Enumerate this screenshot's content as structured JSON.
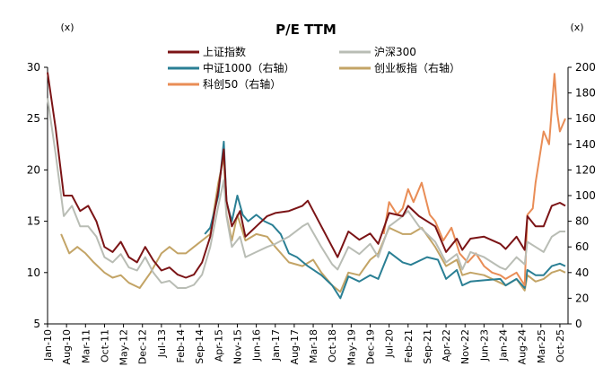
{
  "chart_data": {
    "type": "line",
    "title": "P/E TTM",
    "left_unit": "(x)",
    "right_unit": "(x)",
    "ylim_left": [
      5,
      30
    ],
    "yticks_left": [
      5,
      10,
      15,
      20,
      25,
      30
    ],
    "ylim_right": [
      0,
      200
    ],
    "yticks_right": [
      0,
      20,
      40,
      60,
      80,
      100,
      120,
      140,
      160,
      180,
      200
    ],
    "x_range": [
      "2010-01",
      "2025-12"
    ],
    "x_ticks": [
      "Jan-10",
      "Aug-10",
      "Mar-11",
      "Oct-11",
      "May-12",
      "Dec-12",
      "Jul-13",
      "Feb-14",
      "Sep-14",
      "Apr-15",
      "Nov-15",
      "Jun-16",
      "Jan-17",
      "Aug-17",
      "Mar-18",
      "Oct-18",
      "May-19",
      "Dec-19",
      "Jul-20",
      "Feb-21",
      "Sep-21",
      "Apr-22",
      "Nov-22",
      "Jun-23",
      "Jan-24",
      "Aug-24",
      "Mar-25",
      "Oct-25"
    ],
    "legend_placement": "top",
    "grid": false,
    "series": [
      {
        "name": "上证指数",
        "axis": "left",
        "color": "#7b1416",
        "points": [
          [
            "2010-01",
            29.5
          ],
          [
            "2010-04",
            24.0
          ],
          [
            "2010-07",
            17.5
          ],
          [
            "2010-10",
            17.5
          ],
          [
            "2011-01",
            16.0
          ],
          [
            "2011-04",
            16.5
          ],
          [
            "2011-07",
            15.0
          ],
          [
            "2011-10",
            12.5
          ],
          [
            "2012-01",
            12.0
          ],
          [
            "2012-04",
            13.0
          ],
          [
            "2012-07",
            11.5
          ],
          [
            "2012-10",
            11.0
          ],
          [
            "2013-01",
            12.5
          ],
          [
            "2013-04",
            11.2
          ],
          [
            "2013-07",
            10.2
          ],
          [
            "2013-10",
            10.5
          ],
          [
            "2014-01",
            9.8
          ],
          [
            "2014-04",
            9.5
          ],
          [
            "2014-07",
            9.8
          ],
          [
            "2014-10",
            11.0
          ],
          [
            "2015-01",
            13.5
          ],
          [
            "2015-04",
            18.0
          ],
          [
            "2015-06",
            22.0
          ],
          [
            "2015-07",
            17.0
          ],
          [
            "2015-09",
            14.5
          ],
          [
            "2015-12",
            16.0
          ],
          [
            "2016-02",
            13.5
          ],
          [
            "2016-06",
            14.5
          ],
          [
            "2016-10",
            15.5
          ],
          [
            "2017-01",
            15.8
          ],
          [
            "2017-06",
            16.0
          ],
          [
            "2017-11",
            16.5
          ],
          [
            "2018-01",
            17.0
          ],
          [
            "2018-06",
            14.5
          ],
          [
            "2018-10",
            12.5
          ],
          [
            "2018-12",
            11.5
          ],
          [
            "2019-04",
            14.0
          ],
          [
            "2019-08",
            13.2
          ],
          [
            "2019-12",
            13.8
          ],
          [
            "2020-03",
            12.8
          ],
          [
            "2020-07",
            15.8
          ],
          [
            "2020-12",
            15.5
          ],
          [
            "2021-02",
            16.5
          ],
          [
            "2021-06",
            15.5
          ],
          [
            "2021-12",
            14.5
          ],
          [
            "2022-04",
            12.0
          ],
          [
            "2022-08",
            13.3
          ],
          [
            "2022-10",
            12.2
          ],
          [
            "2023-01",
            13.3
          ],
          [
            "2023-06",
            13.5
          ],
          [
            "2023-12",
            12.8
          ],
          [
            "2024-02",
            12.3
          ],
          [
            "2024-06",
            13.5
          ],
          [
            "2024-09",
            12.2
          ],
          [
            "2024-10",
            15.5
          ],
          [
            "2025-01",
            14.5
          ],
          [
            "2025-04",
            14.5
          ],
          [
            "2025-07",
            16.5
          ],
          [
            "2025-10",
            16.8
          ],
          [
            "2025-12",
            16.5
          ]
        ]
      },
      {
        "name": "沪深300",
        "axis": "left",
        "color": "#b9bdb5",
        "points": [
          [
            "2010-01",
            27.0
          ],
          [
            "2010-04",
            21.5
          ],
          [
            "2010-07",
            15.5
          ],
          [
            "2010-10",
            16.5
          ],
          [
            "2011-01",
            14.5
          ],
          [
            "2011-04",
            14.5
          ],
          [
            "2011-07",
            13.5
          ],
          [
            "2011-10",
            11.5
          ],
          [
            "2012-01",
            11.0
          ],
          [
            "2012-04",
            11.8
          ],
          [
            "2012-07",
            10.5
          ],
          [
            "2012-10",
            10.2
          ],
          [
            "2013-01",
            11.5
          ],
          [
            "2013-04",
            10.0
          ],
          [
            "2013-07",
            9.0
          ],
          [
            "2013-10",
            9.2
          ],
          [
            "2014-01",
            8.5
          ],
          [
            "2014-04",
            8.5
          ],
          [
            "2014-07",
            8.8
          ],
          [
            "2014-10",
            9.8
          ],
          [
            "2015-01",
            12.5
          ],
          [
            "2015-04",
            16.5
          ],
          [
            "2015-06",
            19.0
          ],
          [
            "2015-07",
            15.5
          ],
          [
            "2015-09",
            12.5
          ],
          [
            "2015-12",
            13.5
          ],
          [
            "2016-02",
            11.5
          ],
          [
            "2016-06",
            12.0
          ],
          [
            "2016-10",
            12.5
          ],
          [
            "2017-01",
            12.8
          ],
          [
            "2017-06",
            13.5
          ],
          [
            "2017-11",
            14.5
          ],
          [
            "2018-01",
            14.8
          ],
          [
            "2018-06",
            12.5
          ],
          [
            "2018-10",
            10.8
          ],
          [
            "2018-12",
            10.3
          ],
          [
            "2019-04",
            12.5
          ],
          [
            "2019-08",
            11.8
          ],
          [
            "2019-12",
            12.8
          ],
          [
            "2020-03",
            11.5
          ],
          [
            "2020-07",
            14.5
          ],
          [
            "2020-12",
            15.5
          ],
          [
            "2021-02",
            16.0
          ],
          [
            "2021-06",
            14.5
          ],
          [
            "2021-12",
            13.0
          ],
          [
            "2022-04",
            11.0
          ],
          [
            "2022-08",
            11.8
          ],
          [
            "2022-10",
            10.3
          ],
          [
            "2023-01",
            12.0
          ],
          [
            "2023-06",
            11.5
          ],
          [
            "2023-12",
            10.5
          ],
          [
            "2024-02",
            10.3
          ],
          [
            "2024-06",
            11.5
          ],
          [
            "2024-09",
            10.8
          ],
          [
            "2024-10",
            13.0
          ],
          [
            "2025-01",
            12.5
          ],
          [
            "2025-04",
            12.0
          ],
          [
            "2025-07",
            13.5
          ],
          [
            "2025-10",
            14.0
          ],
          [
            "2025-12",
            14.0
          ]
        ]
      },
      {
        "name": "中证1000（右轴）",
        "axis": "right",
        "color": "#2a7f94",
        "points": [
          [
            "2014-11",
            70
          ],
          [
            "2015-01",
            75
          ],
          [
            "2015-04",
            100
          ],
          [
            "2015-06",
            142
          ],
          [
            "2015-07",
            95
          ],
          [
            "2015-09",
            80
          ],
          [
            "2015-11",
            100
          ],
          [
            "2016-01",
            85
          ],
          [
            "2016-03",
            80
          ],
          [
            "2016-06",
            85
          ],
          [
            "2016-09",
            80
          ],
          [
            "2016-12",
            77
          ],
          [
            "2017-03",
            70
          ],
          [
            "2017-06",
            55
          ],
          [
            "2017-09",
            52
          ],
          [
            "2018-01",
            45
          ],
          [
            "2018-06",
            38
          ],
          [
            "2018-10",
            30
          ],
          [
            "2019-01",
            20
          ],
          [
            "2019-04",
            37
          ],
          [
            "2019-08",
            33
          ],
          [
            "2019-12",
            38
          ],
          [
            "2020-03",
            35
          ],
          [
            "2020-07",
            56
          ],
          [
            "2020-12",
            48
          ],
          [
            "2021-03",
            46
          ],
          [
            "2021-09",
            52
          ],
          [
            "2022-01",
            50
          ],
          [
            "2022-04",
            35
          ],
          [
            "2022-08",
            42
          ],
          [
            "2022-10",
            30
          ],
          [
            "2023-01",
            33
          ],
          [
            "2023-06",
            34
          ],
          [
            "2023-12",
            35
          ],
          [
            "2024-02",
            30
          ],
          [
            "2024-06",
            35
          ],
          [
            "2024-09",
            28
          ],
          [
            "2024-10",
            42
          ],
          [
            "2025-01",
            38
          ],
          [
            "2025-04",
            38
          ],
          [
            "2025-07",
            45
          ],
          [
            "2025-10",
            47
          ],
          [
            "2025-12",
            45
          ]
        ]
      },
      {
        "name": "创业板指（右轴）",
        "axis": "right",
        "color": "#c3a466",
        "points": [
          [
            "2010-06",
            70
          ],
          [
            "2010-09",
            55
          ],
          [
            "2010-12",
            60
          ],
          [
            "2011-03",
            55
          ],
          [
            "2011-06",
            48
          ],
          [
            "2011-10",
            40
          ],
          [
            "2012-01",
            36
          ],
          [
            "2012-04",
            38
          ],
          [
            "2012-07",
            32
          ],
          [
            "2012-11",
            28
          ],
          [
            "2013-03",
            40
          ],
          [
            "2013-07",
            55
          ],
          [
            "2013-10",
            60
          ],
          [
            "2014-01",
            55
          ],
          [
            "2014-04",
            55
          ],
          [
            "2014-07",
            60
          ],
          [
            "2014-10",
            65
          ],
          [
            "2015-01",
            70
          ],
          [
            "2015-04",
            110
          ],
          [
            "2015-06",
            130
          ],
          [
            "2015-07",
            85
          ],
          [
            "2015-09",
            65
          ],
          [
            "2015-11",
            85
          ],
          [
            "2016-02",
            65
          ],
          [
            "2016-06",
            70
          ],
          [
            "2016-10",
            68
          ],
          [
            "2017-01",
            60
          ],
          [
            "2017-06",
            48
          ],
          [
            "2017-11",
            45
          ],
          [
            "2018-03",
            50
          ],
          [
            "2018-06",
            40
          ],
          [
            "2018-10",
            30
          ],
          [
            "2019-01",
            25
          ],
          [
            "2019-04",
            40
          ],
          [
            "2019-08",
            38
          ],
          [
            "2019-12",
            50
          ],
          [
            "2020-03",
            55
          ],
          [
            "2020-07",
            75
          ],
          [
            "2020-12",
            70
          ],
          [
            "2021-03",
            70
          ],
          [
            "2021-07",
            75
          ],
          [
            "2021-12",
            60
          ],
          [
            "2022-04",
            45
          ],
          [
            "2022-08",
            50
          ],
          [
            "2022-10",
            38
          ],
          [
            "2023-01",
            40
          ],
          [
            "2023-06",
            38
          ],
          [
            "2023-12",
            32
          ],
          [
            "2024-02",
            30
          ],
          [
            "2024-06",
            35
          ],
          [
            "2024-09",
            26
          ],
          [
            "2024-10",
            38
          ],
          [
            "2025-01",
            33
          ],
          [
            "2025-04",
            35
          ],
          [
            "2025-07",
            40
          ],
          [
            "2025-10",
            42
          ],
          [
            "2025-12",
            40
          ]
        ]
      },
      {
        "name": "科创50（右轴）",
        "axis": "right",
        "color": "#e98d56",
        "points": [
          [
            "2020-05",
            70
          ],
          [
            "2020-07",
            95
          ],
          [
            "2020-10",
            85
          ],
          [
            "2020-12",
            90
          ],
          [
            "2021-02",
            105
          ],
          [
            "2021-04",
            95
          ],
          [
            "2021-07",
            110
          ],
          [
            "2021-10",
            85
          ],
          [
            "2021-12",
            80
          ],
          [
            "2022-03",
            65
          ],
          [
            "2022-06",
            75
          ],
          [
            "2022-09",
            55
          ],
          [
            "2022-12",
            48
          ],
          [
            "2023-03",
            55
          ],
          [
            "2023-06",
            45
          ],
          [
            "2023-09",
            40
          ],
          [
            "2023-12",
            38
          ],
          [
            "2024-02",
            35
          ],
          [
            "2024-06",
            40
          ],
          [
            "2024-09",
            30
          ],
          [
            "2024-10",
            85
          ],
          [
            "2024-12",
            90
          ],
          [
            "2025-01",
            110
          ],
          [
            "2025-04",
            150
          ],
          [
            "2025-06",
            140
          ],
          [
            "2025-08",
            195
          ],
          [
            "2025-09",
            165
          ],
          [
            "2025-10",
            150
          ],
          [
            "2025-12",
            160
          ]
        ]
      }
    ]
  }
}
